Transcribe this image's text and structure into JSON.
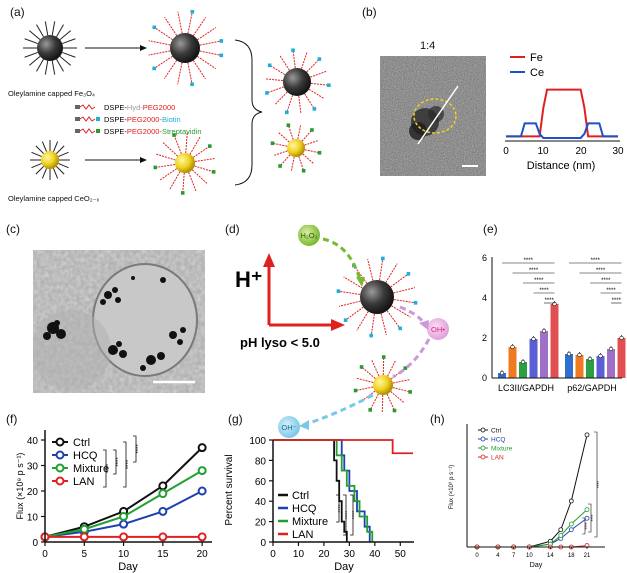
{
  "figure": {
    "panels": {
      "a": {
        "label": "(a)",
        "fe3o4_label": "Oleylamine capped Fe₃O₄",
        "ceo2_label": "Oleylamine capped CeO₂₋ₓ",
        "legend": [
          {
            "prefix": "DSPE-",
            "mid": "Hyd-",
            "suffix": "PEG2000",
            "prefix_color": "#111111",
            "mid_color": "#9a9a9a",
            "suffix_color": "#e02020"
          },
          {
            "prefix": "DSPE-",
            "mid": "PEG2000-",
            "suffix": "Biotin",
            "prefix_color": "#111111",
            "mid_color": "#e02020",
            "suffix_color": "#1ab0d8"
          },
          {
            "prefix": "DSPE-",
            "mid": "PEG2000-",
            "suffix": "Streptavidin",
            "prefix_color": "#111111",
            "mid_color": "#e02020",
            "suffix_color": "#2a9a30"
          }
        ]
      },
      "b": {
        "label": "(b)",
        "ratio": "1:4",
        "legend": [
          {
            "name": "Fe",
            "color": "#e02020"
          },
          {
            "name": "Ce",
            "color": "#2050c8"
          }
        ],
        "xlabel": "Distance (nm)",
        "xticks": [
          "0",
          "10",
          "20",
          "30"
        ]
      },
      "c": {
        "label": "(c)"
      },
      "d": {
        "label": "(d)",
        "h_plus": "H⁺",
        "ph_text": "pH lyso < 5.0",
        "h2o2": "H₂O₂",
        "oh_rad": "OH•",
        "oh_ion": "OH⁻"
      },
      "e": {
        "label": "(e)",
        "yticks": [
          "0",
          "2",
          "4",
          "6"
        ],
        "groups": [
          "LC3II/GAPDH",
          "p62/GAPDH"
        ],
        "sig": "****",
        "bar_colors": [
          "#2f6fd0",
          "#f07a20",
          "#2aa040",
          "#5b5fd6",
          "#a070c8",
          "#e05050"
        ]
      },
      "f": {
        "label": "(f)",
        "ylabel": "Flux (×10⁹ p s⁻¹)",
        "xlabel": "Day",
        "yticks": [
          "0",
          "10",
          "20",
          "30",
          "40"
        ],
        "xticks": [
          "0",
          "5",
          "10",
          "15",
          "20"
        ],
        "legend": [
          "Ctrl",
          "HCQ",
          "Mixture",
          "LAN"
        ],
        "sig": "****"
      },
      "g": {
        "label": "(g)",
        "ylabel": "Percent survival",
        "xlabel": "Day",
        "yticks": [
          "0",
          "20",
          "40",
          "60",
          "80",
          "100"
        ],
        "xticks": [
          "0",
          "10",
          "20",
          "30",
          "40",
          "50"
        ],
        "legend": [
          "Ctrl",
          "HCQ",
          "Mixture",
          "LAN"
        ],
        "sig": "****"
      },
      "h": {
        "label": "(h)",
        "ylabel": "Flux (×10⁹ p s⁻¹)",
        "xlabel": "Day",
        "xticks": [
          "0",
          "4",
          "7",
          "10",
          "14",
          "18",
          "21"
        ],
        "legend": [
          "Ctrl",
          "HCQ",
          "Mixture",
          "LAN"
        ],
        "sig": "****"
      }
    },
    "colors": {
      "ctrl": "#111111",
      "hcq": "#2040b0",
      "mixture": "#20a030",
      "lan": "#e02020"
    }
  },
  "chart_data": [
    {
      "panel": "b",
      "type": "line",
      "xlabel": "Distance (nm)",
      "xlim": [
        0,
        30
      ],
      "series": [
        {
          "name": "Fe",
          "x": [
            0,
            9,
            10,
            11,
            20,
            21,
            22,
            30
          ],
          "y": [
            0.05,
            0.05,
            0.6,
            0.95,
            0.95,
            0.6,
            0.05,
            0.05
          ]
        },
        {
          "name": "Ce",
          "x": [
            0,
            4,
            5,
            8,
            9,
            10,
            20,
            21,
            22,
            25,
            26,
            30
          ],
          "y": [
            0.05,
            0.05,
            0.3,
            0.3,
            0.1,
            0.02,
            0.02,
            0.1,
            0.3,
            0.3,
            0.05,
            0.05
          ]
        }
      ]
    },
    {
      "panel": "e",
      "type": "bar",
      "categories": [
        "LC3II/GAPDH",
        "p62/GAPDH"
      ],
      "ylim": [
        0,
        6
      ],
      "series": [
        {
          "name": "bar1",
          "values": [
            0.25,
            1.2
          ]
        },
        {
          "name": "bar2",
          "values": [
            1.55,
            1.15
          ]
        },
        {
          "name": "bar3",
          "values": [
            0.8,
            0.95
          ]
        },
        {
          "name": "bar4",
          "values": [
            1.95,
            1.1
          ]
        },
        {
          "name": "bar5",
          "values": [
            2.35,
            1.45
          ]
        },
        {
          "name": "bar6",
          "values": [
            3.7,
            2.0
          ]
        }
      ]
    },
    {
      "panel": "f",
      "type": "line",
      "xlabel": "Day",
      "ylabel": "Flux (×10⁹ p s⁻¹)",
      "xlim": [
        0,
        21
      ],
      "ylim": [
        0,
        40
      ],
      "x": [
        0,
        5,
        10,
        15,
        20
      ],
      "series": [
        {
          "name": "Ctrl",
          "values": [
            2,
            6,
            12,
            22,
            37
          ]
        },
        {
          "name": "HCQ",
          "values": [
            2,
            4,
            7,
            12,
            20
          ]
        },
        {
          "name": "Mixture",
          "values": [
            2,
            5,
            10,
            19,
            28
          ]
        },
        {
          "name": "LAN",
          "values": [
            2,
            2,
            2,
            2,
            2
          ]
        }
      ]
    },
    {
      "panel": "g",
      "type": "line",
      "xlabel": "Day",
      "ylabel": "Percent survival",
      "xlim": [
        0,
        55
      ],
      "ylim": [
        0,
        100
      ],
      "series": [
        {
          "name": "Ctrl",
          "x": [
            0,
            24,
            24,
            25,
            25,
            26,
            26,
            27,
            27,
            28,
            28,
            29,
            29
          ],
          "y": [
            100,
            100,
            80,
            80,
            60,
            60,
            40,
            40,
            20,
            20,
            10,
            10,
            0
          ]
        },
        {
          "name": "HCQ",
          "x": [
            0,
            27,
            27,
            28,
            28,
            30,
            30,
            33,
            33,
            36,
            36,
            38,
            38
          ],
          "y": [
            100,
            100,
            85,
            85,
            70,
            70,
            50,
            50,
            30,
            30,
            15,
            15,
            0
          ]
        },
        {
          "name": "Mixture",
          "x": [
            0,
            25,
            25,
            27,
            27,
            29,
            29,
            32,
            32,
            34,
            34,
            37,
            37,
            39,
            39
          ],
          "y": [
            100,
            100,
            85,
            85,
            70,
            70,
            55,
            55,
            40,
            40,
            25,
            25,
            10,
            10,
            0
          ]
        },
        {
          "name": "LAN",
          "x": [
            0,
            47,
            47,
            55
          ],
          "y": [
            100,
            100,
            87,
            87
          ]
        }
      ]
    },
    {
      "panel": "h",
      "type": "line",
      "xlabel": "Day",
      "ylim": [
        0,
        4
      ],
      "x": [
        0,
        4,
        7,
        10,
        14,
        16,
        18,
        21
      ],
      "series": [
        {
          "name": "Ctrl",
          "values": [
            0,
            0,
            0,
            0,
            0.2,
            0.6,
            1.6,
            3.9
          ]
        },
        {
          "name": "HCQ",
          "values": [
            0,
            0,
            0,
            0,
            0.1,
            0.3,
            0.6,
            1.0
          ]
        },
        {
          "name": "Mixture",
          "values": [
            0,
            0,
            0,
            0,
            0.1,
            0.4,
            0.8,
            1.3
          ]
        },
        {
          "name": "LAN",
          "values": [
            0,
            0,
            0,
            0,
            0,
            0,
            0,
            0.05
          ]
        }
      ]
    }
  ]
}
